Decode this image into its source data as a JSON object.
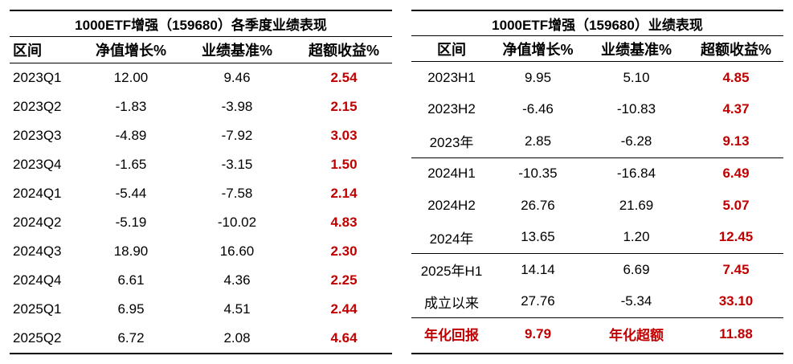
{
  "quarterly": {
    "title": "1000ETF增强（159680）各季度业绩表现",
    "headers": [
      "区间",
      "净值增长%",
      "业绩基准%",
      "超额收益%"
    ],
    "rows": [
      [
        "2023Q1",
        "12.00",
        "9.46",
        "2.54"
      ],
      [
        "2023Q2",
        "-1.83",
        "-3.98",
        "2.15"
      ],
      [
        "2023Q3",
        "-4.89",
        "-7.92",
        "3.03"
      ],
      [
        "2023Q4",
        "-1.65",
        "-3.15",
        "1.50"
      ],
      [
        "2024Q1",
        "-5.44",
        "-7.58",
        "2.14"
      ],
      [
        "2024Q2",
        "-5.19",
        "-10.02",
        "4.83"
      ],
      [
        "2024Q3",
        "18.90",
        "16.60",
        "2.30"
      ],
      [
        "2024Q4",
        "6.61",
        "4.36",
        "2.25"
      ],
      [
        "2025Q1",
        "6.95",
        "4.51",
        "2.44"
      ],
      [
        "2025Q2",
        "6.72",
        "2.08",
        "4.64"
      ]
    ]
  },
  "halfyear": {
    "title": "1000ETF增强（159680）业绩表现",
    "headers": [
      "区间",
      "净值增长%",
      "业绩基准%",
      "超额收益%"
    ],
    "rows": [
      [
        "2023H1",
        "9.95",
        "5.10",
        "4.85"
      ],
      [
        "2023H2",
        "-6.46",
        "-10.83",
        "4.37"
      ],
      [
        "2023年",
        "2.85",
        "-6.28",
        "9.13"
      ],
      [
        "2024H1",
        "-10.35",
        "-16.84",
        "6.49"
      ],
      [
        "2024H2",
        "26.76",
        "21.69",
        "5.07"
      ],
      [
        "2024年",
        "13.65",
        "1.20",
        "12.45"
      ],
      [
        "2025年H1",
        "14.14",
        "6.69",
        "7.45"
      ],
      [
        "成立以来",
        "27.76",
        "-5.34",
        "33.10"
      ],
      [
        "年化回报",
        "9.79",
        "年化超额",
        "11.88"
      ]
    ]
  },
  "colors": {
    "highlight": "#c00000",
    "text": "#000000"
  }
}
